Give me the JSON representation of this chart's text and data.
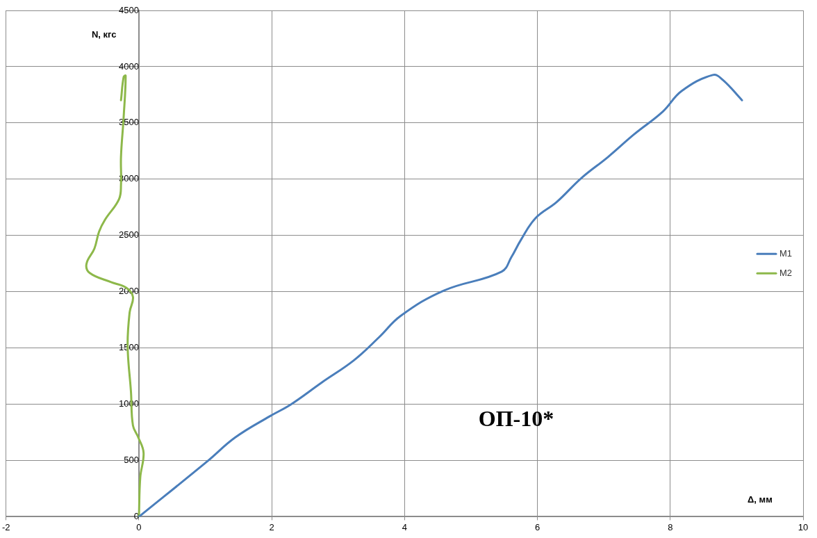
{
  "chart_data": {
    "type": "line",
    "xlabel": "Δ, мм",
    "ylabel": "N, кгс",
    "annotations": [
      "ОП-10*"
    ],
    "xlim": [
      -2,
      10
    ],
    "xticks": [
      -2,
      0,
      2,
      4,
      6,
      8,
      10
    ],
    "ylim": [
      0,
      4500
    ],
    "yticks": [
      0,
      500,
      1000,
      1500,
      2000,
      2500,
      3000,
      3500,
      4000,
      4500
    ],
    "grid": true,
    "legend": "right",
    "marker": "none",
    "line_style": "solid",
    "series": [
      {
        "name": "M1",
        "color": "#4a7ebb",
        "x": [
          0,
          1.03,
          1.45,
          1.97,
          2.29,
          2.75,
          3.24,
          3.62,
          3.94,
          4.59,
          5.46,
          5.61,
          5.75,
          5.97,
          6.29,
          6.66,
          7.06,
          7.45,
          7.89,
          8.17,
          8.64,
          8.79,
          9.08
        ],
        "values": [
          0,
          493,
          705,
          893,
          999,
          1192,
          1392,
          1598,
          1785,
          2010,
          2178,
          2310,
          2459,
          2653,
          2797,
          3009,
          3196,
          3396,
          3602,
          3783,
          3926,
          3883,
          3702
        ]
      },
      {
        "name": "M2",
        "color": "#8db84a",
        "x": [
          0,
          0.02,
          0.07,
          -0.01,
          -0.09,
          -0.12,
          -0.17,
          -0.14,
          -0.09,
          -0.19,
          -0.42,
          -0.74,
          -0.79,
          -0.67,
          -0.6,
          -0.51,
          -0.3,
          -0.27,
          -0.27,
          -0.23,
          -0.2,
          -0.23,
          -0.27
        ],
        "values": [
          0,
          350,
          568,
          705,
          811,
          1111,
          1517,
          1817,
          1954,
          2035,
          2085,
          2166,
          2247,
          2384,
          2534,
          2640,
          2822,
          2953,
          3202,
          3552,
          3920,
          3908,
          3702
        ]
      }
    ]
  }
}
